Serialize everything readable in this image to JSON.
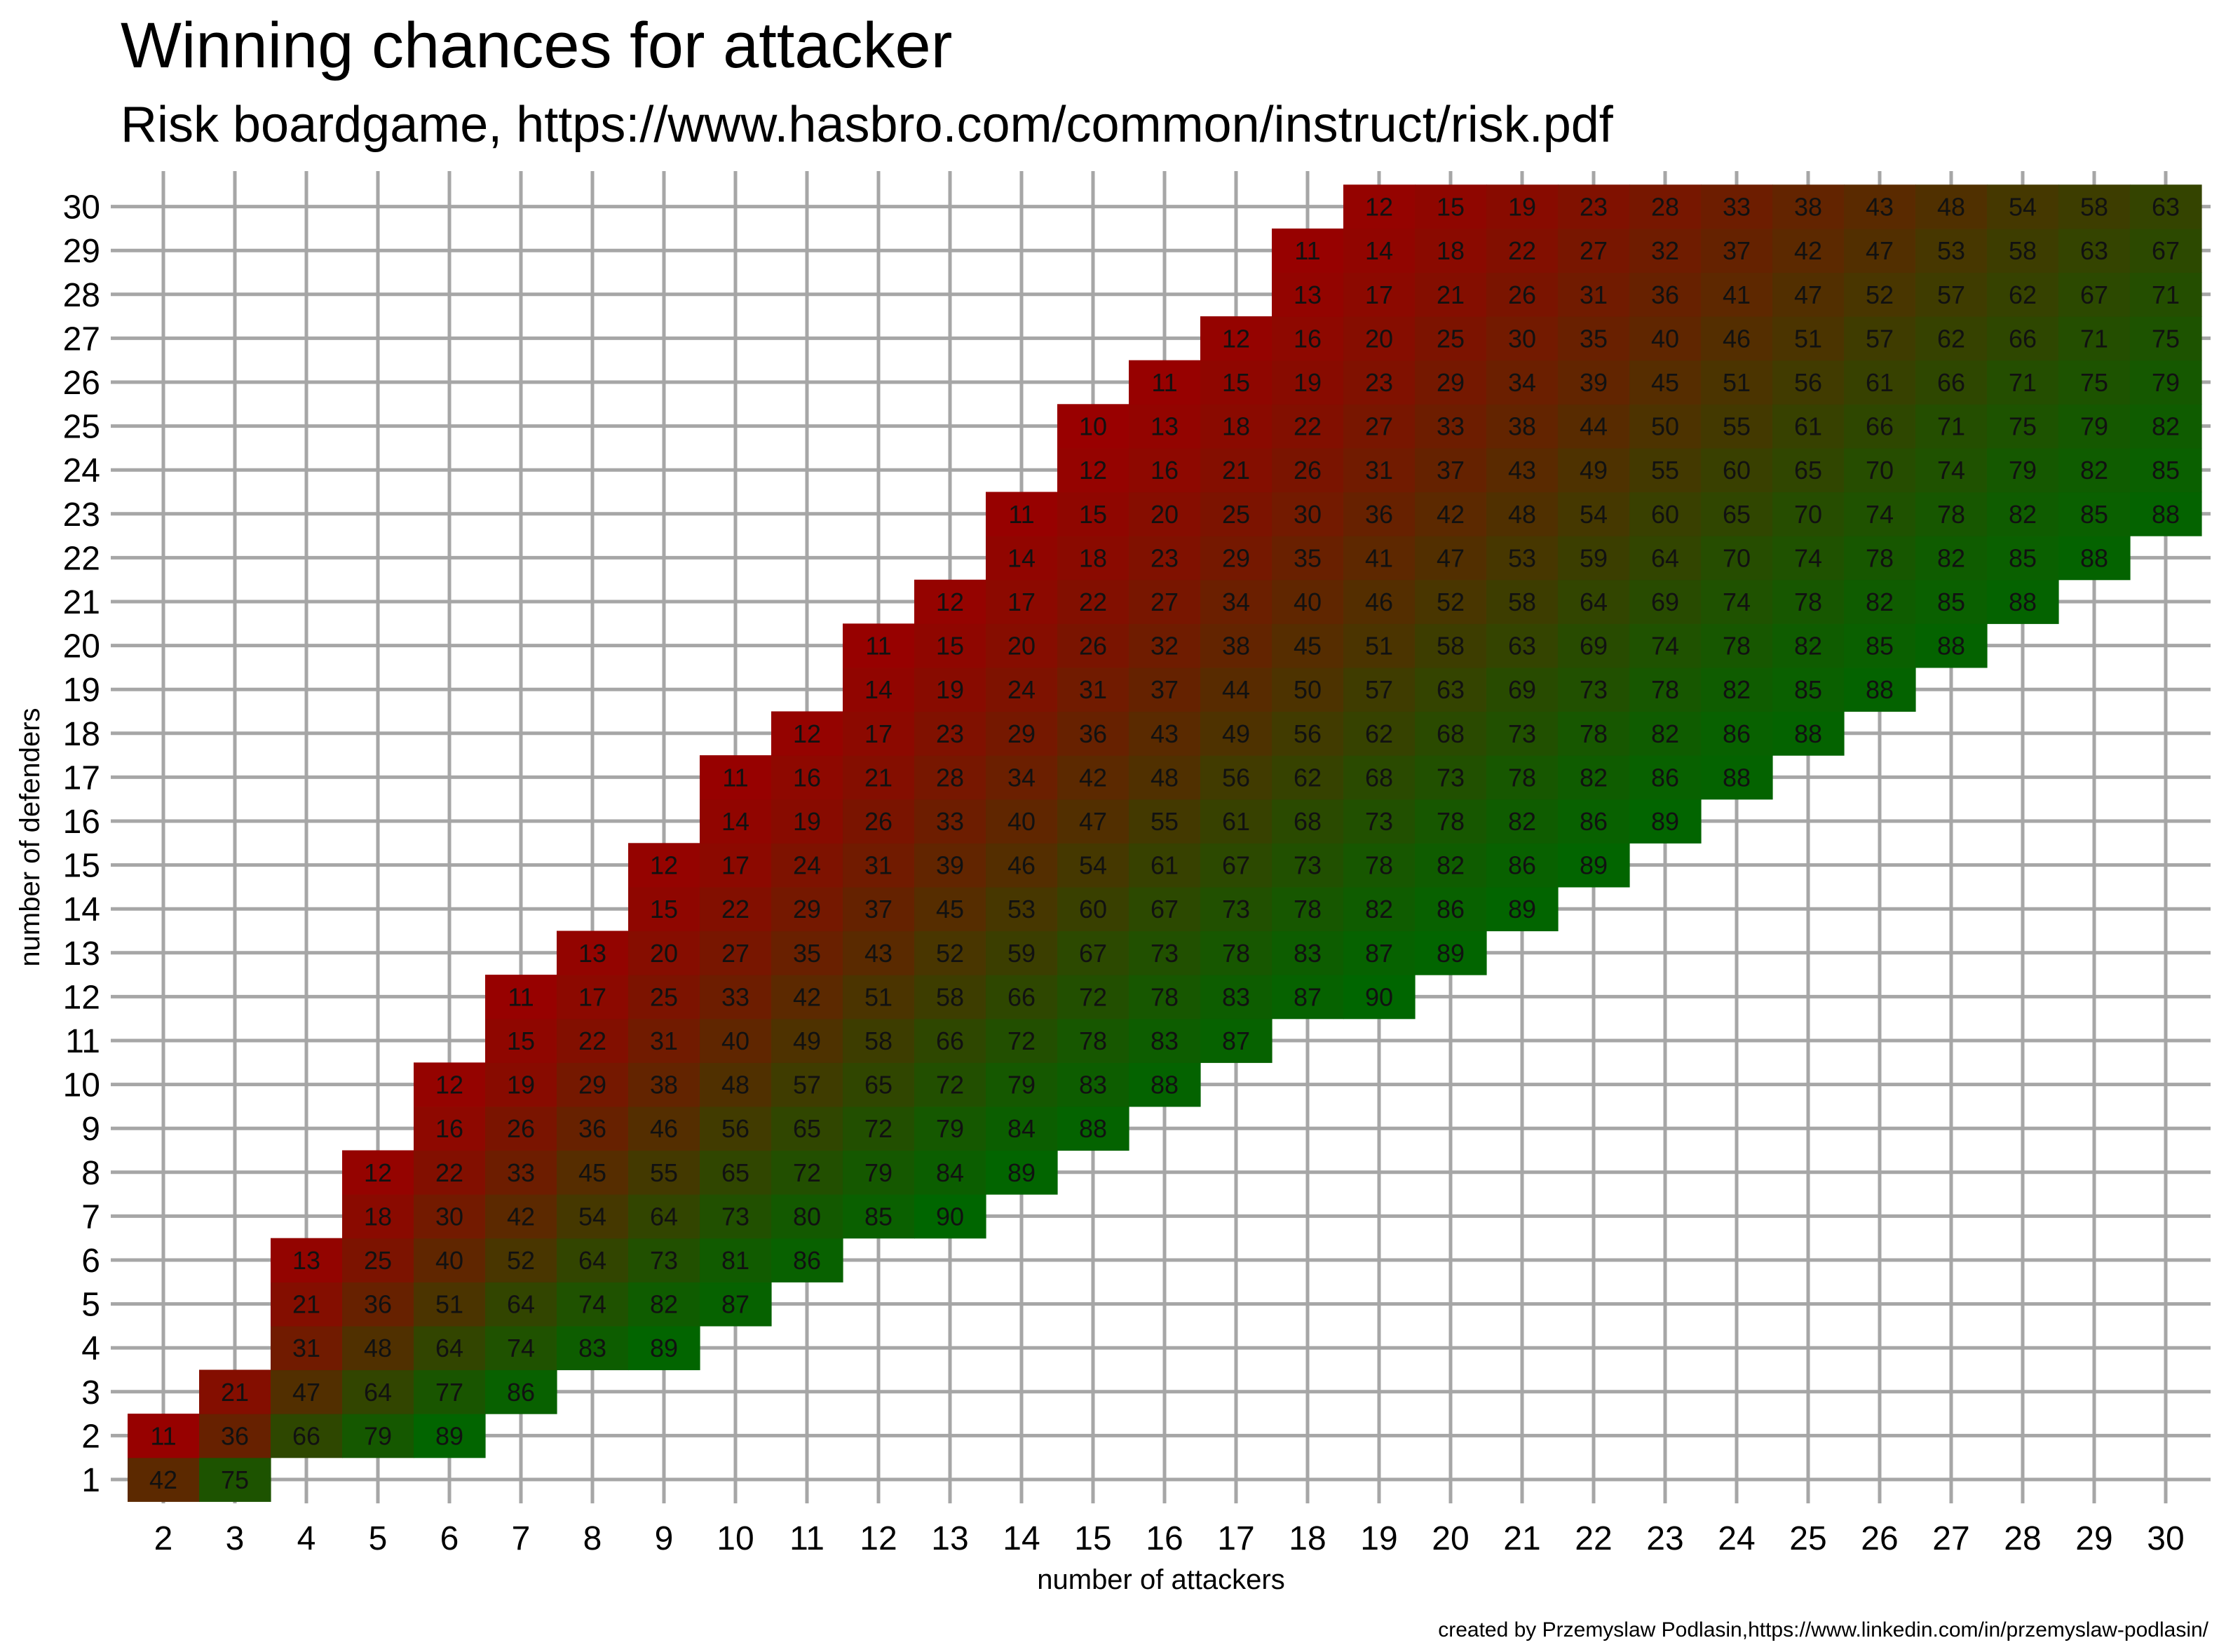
{
  "chart_data": {
    "type": "heatmap",
    "title": "Winning chances for attacker",
    "subtitle": "Risk boardgame, https://www.hasbro.com/common/instruct/risk.pdf",
    "xlabel": "number of attackers",
    "ylabel": "number of defenders",
    "caption": "created by Przemyslaw Podlasin,https://www.linkedin.com/in/przemyslaw-podlasin/",
    "xlim": [
      2,
      30
    ],
    "ylim": [
      1,
      30
    ],
    "grid": true,
    "color_low": "#990000",
    "color_high": "#006600",
    "rows": [
      {
        "defenders": 1,
        "start": 2,
        "values": [
          42,
          75
        ]
      },
      {
        "defenders": 2,
        "start": 2,
        "values": [
          11,
          36,
          66,
          79,
          89
        ]
      },
      {
        "defenders": 3,
        "start": 3,
        "values": [
          21,
          47,
          64,
          77,
          86
        ]
      },
      {
        "defenders": 4,
        "start": 4,
        "values": [
          31,
          48,
          64,
          74,
          83,
          89
        ]
      },
      {
        "defenders": 5,
        "start": 4,
        "values": [
          21,
          36,
          51,
          64,
          74,
          82,
          87
        ]
      },
      {
        "defenders": 6,
        "start": 4,
        "values": [
          13,
          25,
          40,
          52,
          64,
          73,
          81,
          86
        ]
      },
      {
        "defenders": 7,
        "start": 5,
        "values": [
          18,
          30,
          42,
          54,
          64,
          73,
          80,
          85,
          90
        ]
      },
      {
        "defenders": 8,
        "start": 5,
        "values": [
          12,
          22,
          33,
          45,
          55,
          65,
          72,
          79,
          84,
          89
        ]
      },
      {
        "defenders": 9,
        "start": 6,
        "values": [
          16,
          26,
          36,
          46,
          56,
          65,
          72,
          79,
          84,
          88
        ]
      },
      {
        "defenders": 10,
        "start": 6,
        "values": [
          12,
          19,
          29,
          38,
          48,
          57,
          65,
          72,
          79,
          83,
          88
        ]
      },
      {
        "defenders": 11,
        "start": 7,
        "values": [
          15,
          22,
          31,
          40,
          49,
          58,
          66,
          72,
          78,
          83,
          87
        ]
      },
      {
        "defenders": 12,
        "start": 7,
        "values": [
          11,
          17,
          25,
          33,
          42,
          51,
          58,
          66,
          72,
          78,
          83,
          87,
          90
        ]
      },
      {
        "defenders": 13,
        "start": 8,
        "values": [
          13,
          20,
          27,
          35,
          43,
          52,
          59,
          67,
          73,
          78,
          83,
          87,
          89
        ]
      },
      {
        "defenders": 14,
        "start": 9,
        "values": [
          15,
          22,
          29,
          37,
          45,
          53,
          60,
          67,
          73,
          78,
          82,
          86,
          89
        ]
      },
      {
        "defenders": 15,
        "start": 9,
        "values": [
          12,
          17,
          24,
          31,
          39,
          46,
          54,
          61,
          67,
          73,
          78,
          82,
          86,
          89
        ]
      },
      {
        "defenders": 16,
        "start": 10,
        "values": [
          14,
          19,
          26,
          33,
          40,
          47,
          55,
          61,
          68,
          73,
          78,
          82,
          86,
          89
        ]
      },
      {
        "defenders": 17,
        "start": 10,
        "values": [
          11,
          16,
          21,
          28,
          34,
          42,
          48,
          56,
          62,
          68,
          73,
          78,
          82,
          86,
          88
        ]
      },
      {
        "defenders": 18,
        "start": 11,
        "values": [
          12,
          17,
          23,
          29,
          36,
          43,
          49,
          56,
          62,
          68,
          73,
          78,
          82,
          86,
          88
        ]
      },
      {
        "defenders": 19,
        "start": 12,
        "values": [
          14,
          19,
          24,
          31,
          37,
          44,
          50,
          57,
          63,
          69,
          73,
          78,
          82,
          85,
          88
        ]
      },
      {
        "defenders": 20,
        "start": 12,
        "values": [
          11,
          15,
          20,
          26,
          32,
          38,
          45,
          51,
          58,
          63,
          69,
          74,
          78,
          82,
          85,
          88
        ]
      },
      {
        "defenders": 21,
        "start": 13,
        "values": [
          12,
          17,
          22,
          27,
          34,
          40,
          46,
          52,
          58,
          64,
          69,
          74,
          78,
          82,
          85,
          88
        ]
      },
      {
        "defenders": 22,
        "start": 14,
        "values": [
          14,
          18,
          23,
          29,
          35,
          41,
          47,
          53,
          59,
          64,
          70,
          74,
          78,
          82,
          85,
          88
        ]
      },
      {
        "defenders": 23,
        "start": 14,
        "values": [
          11,
          15,
          20,
          25,
          30,
          36,
          42,
          48,
          54,
          60,
          65,
          70,
          74,
          78,
          82,
          85,
          88
        ]
      },
      {
        "defenders": 24,
        "start": 15,
        "values": [
          12,
          16,
          21,
          26,
          31,
          37,
          43,
          49,
          55,
          60,
          65,
          70,
          74,
          79,
          82,
          85
        ]
      },
      {
        "defenders": 25,
        "start": 15,
        "values": [
          10,
          13,
          18,
          22,
          27,
          33,
          38,
          44,
          50,
          55,
          61,
          66,
          71,
          75,
          79,
          82
        ]
      },
      {
        "defenders": 26,
        "start": 16,
        "values": [
          11,
          15,
          19,
          23,
          29,
          34,
          39,
          45,
          51,
          56,
          61,
          66,
          71,
          75,
          79
        ]
      },
      {
        "defenders": 27,
        "start": 17,
        "values": [
          12,
          16,
          20,
          25,
          30,
          35,
          40,
          46,
          51,
          57,
          62,
          66,
          71,
          75
        ]
      },
      {
        "defenders": 28,
        "start": 18,
        "values": [
          13,
          17,
          21,
          26,
          31,
          36,
          41,
          47,
          52,
          57,
          62,
          67,
          71
        ]
      },
      {
        "defenders": 29,
        "start": 18,
        "values": [
          11,
          14,
          18,
          22,
          27,
          32,
          37,
          42,
          47,
          53,
          58,
          63,
          67
        ]
      },
      {
        "defenders": 30,
        "start": 19,
        "values": [
          12,
          15,
          19,
          23,
          28,
          33,
          38,
          43,
          48,
          54,
          58,
          63
        ]
      }
    ]
  }
}
